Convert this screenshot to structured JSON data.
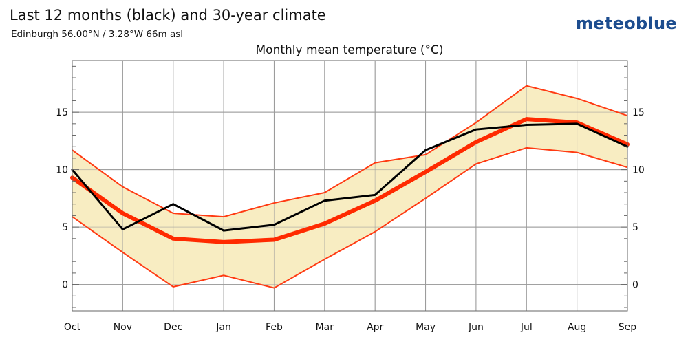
{
  "header": {
    "title": "Last 12 months (black) and 30-year climate",
    "location": "Edinburgh 56.00°N / 3.28°W   66m asl",
    "brand": "meteoblue"
  },
  "colors": {
    "band_fill": "#f8edc2",
    "band_edge": "#ff3a12",
    "mean_line": "#ff2a00",
    "last12_line": "#000000",
    "grid": "#9a9a9a",
    "axis": "#666666"
  },
  "chart_data": {
    "type": "line",
    "title": "Monthly mean temperature (°C)",
    "categories": [
      "Oct",
      "Nov",
      "Dec",
      "Jan",
      "Feb",
      "Mar",
      "Apr",
      "May",
      "Jun",
      "Jul",
      "Aug",
      "Sep"
    ],
    "ylim": [
      -2.3,
      19.5
    ],
    "yticks": [
      0,
      5,
      10,
      15
    ],
    "grid": true,
    "legend": "none",
    "series": [
      {
        "values": [
          11.7,
          8.5,
          6.2,
          5.9,
          7.1,
          8.0,
          10.6,
          11.3,
          14.1,
          17.3,
          16.2,
          14.7
        ]
      },
      {
        "values": [
          9.3,
          6.2,
          4.0,
          3.7,
          3.9,
          5.3,
          7.3,
          9.8,
          12.4,
          14.4,
          14.1,
          12.2
        ]
      },
      {
        "values": [
          5.9,
          2.8,
          -0.2,
          0.8,
          -0.3,
          2.2,
          4.6,
          7.5,
          10.5,
          11.9,
          11.5,
          10.2
        ]
      },
      {
        "values": [
          10.0,
          4.8,
          7.0,
          4.7,
          5.2,
          7.3,
          7.8,
          11.7,
          13.5,
          13.9,
          14.0,
          12.0
        ]
      }
    ]
  }
}
